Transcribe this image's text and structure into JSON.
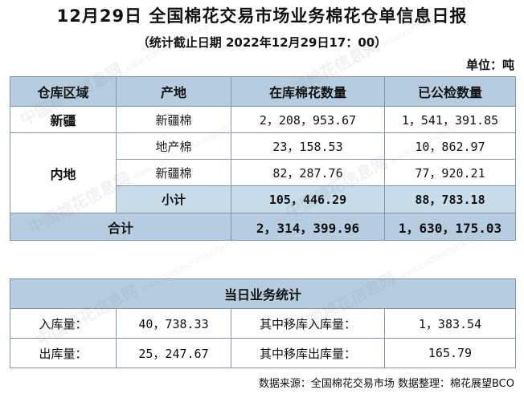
{
  "header": {
    "title": "12月29日 全国棉花交易市场业务棉花仓单信息日报",
    "subtitle": "（统计截止日期 2022年12月29日17：00）",
    "unit": "单位：吨"
  },
  "main_table": {
    "headers": [
      "仓库区域",
      "产地",
      "在库棉花数量",
      "已公检数量"
    ],
    "xinjiang": {
      "region": "新疆",
      "origin": "新疆棉",
      "stock": "2，208，953.67",
      "inspected": "1，541，391.85"
    },
    "neidi": {
      "region": "内地",
      "rows": [
        {
          "origin": "地产棉",
          "stock": "23，158.53",
          "inspected": "10，862.97"
        },
        {
          "origin": "新疆棉",
          "stock": "82，287.76",
          "inspected": "77，920.21"
        }
      ],
      "subtotal": {
        "label": "小计",
        "stock": "105，446.29",
        "inspected": "88，783.18"
      }
    },
    "total": {
      "label": "合计",
      "stock": "2，314，399.96",
      "inspected": "1，630，175.03"
    }
  },
  "daily_table": {
    "title": "当日业务统计",
    "rows": [
      {
        "label1": "入库量：",
        "value1": "40，738.33",
        "label2": "其中移库入库量：",
        "value2": "1，383.54"
      },
      {
        "label1": "出库量：",
        "value1": "25，247.67",
        "label2": "其中移库出库量：",
        "value2": "165.79"
      }
    ]
  },
  "footer": {
    "source": "数据来源：全国棉花交易市场 数据整理：棉花展望BCO"
  },
  "watermark": {
    "text": "中国棉花信息网",
    "site": "www.cottonchina.org.cn"
  }
}
